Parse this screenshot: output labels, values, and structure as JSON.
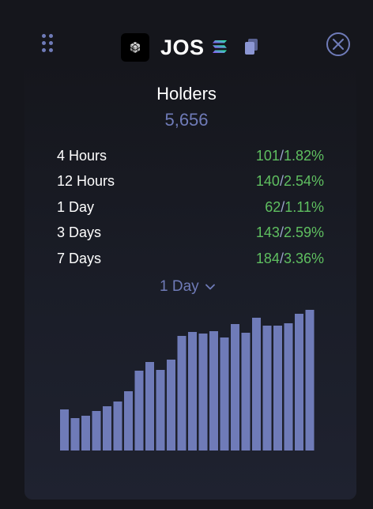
{
  "header": {
    "token_name": "JOS",
    "logo_icon": "cube-logo-icon",
    "chain_icon": "solana-icon",
    "copy_icon": "copy-icon",
    "close_icon": "close-icon",
    "drag_icon": "drag-handle-icon"
  },
  "holders": {
    "title": "Holders",
    "count": "5,656"
  },
  "stats": [
    {
      "label": "4 Hours",
      "count": "101",
      "percent": "1.82%"
    },
    {
      "label": "12 Hours",
      "count": "140",
      "percent": "2.54%"
    },
    {
      "label": "1 Day",
      "count": "62",
      "percent": "1.11%"
    },
    {
      "label": "3 Days",
      "count": "143",
      "percent": "2.59%"
    },
    {
      "label": "7 Days",
      "count": "184",
      "percent": "3.36%"
    }
  ],
  "period_selector": {
    "selected": "1 Day"
  },
  "colors": {
    "accent": "#6f7bb8",
    "positive": "#5fbf60",
    "bar": "#6f7bb8",
    "background": "#15161c"
  },
  "chart_data": {
    "type": "bar",
    "values": [
      52,
      41,
      44,
      50,
      56,
      62,
      75,
      101,
      112,
      102,
      115,
      145,
      150,
      148,
      151,
      143,
      160,
      149,
      168,
      158,
      158,
      161,
      173,
      178
    ],
    "ylim": [
      0,
      182
    ]
  }
}
